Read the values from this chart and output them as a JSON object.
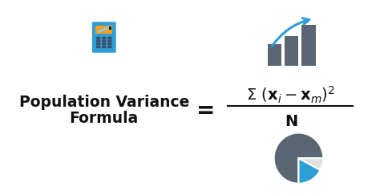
{
  "bg_color": "#ffffff",
  "title_line1": "Population Variance",
  "title_line2": "Formula",
  "title_fontsize": 13.5,
  "title_color": "#111111",
  "accent_color": "#2e9fd4",
  "orange_color": "#f5a020",
  "bar_color": "#5a6672",
  "pie_color_blue": "#2e9fd4",
  "pie_color_grey": "#5a6672",
  "pie_color_white": "#e0e0e0",
  "btn_color": "#3d4f6e",
  "calc_body_color": "#2e9fd4",
  "calc_disp_color": "#f5a020"
}
